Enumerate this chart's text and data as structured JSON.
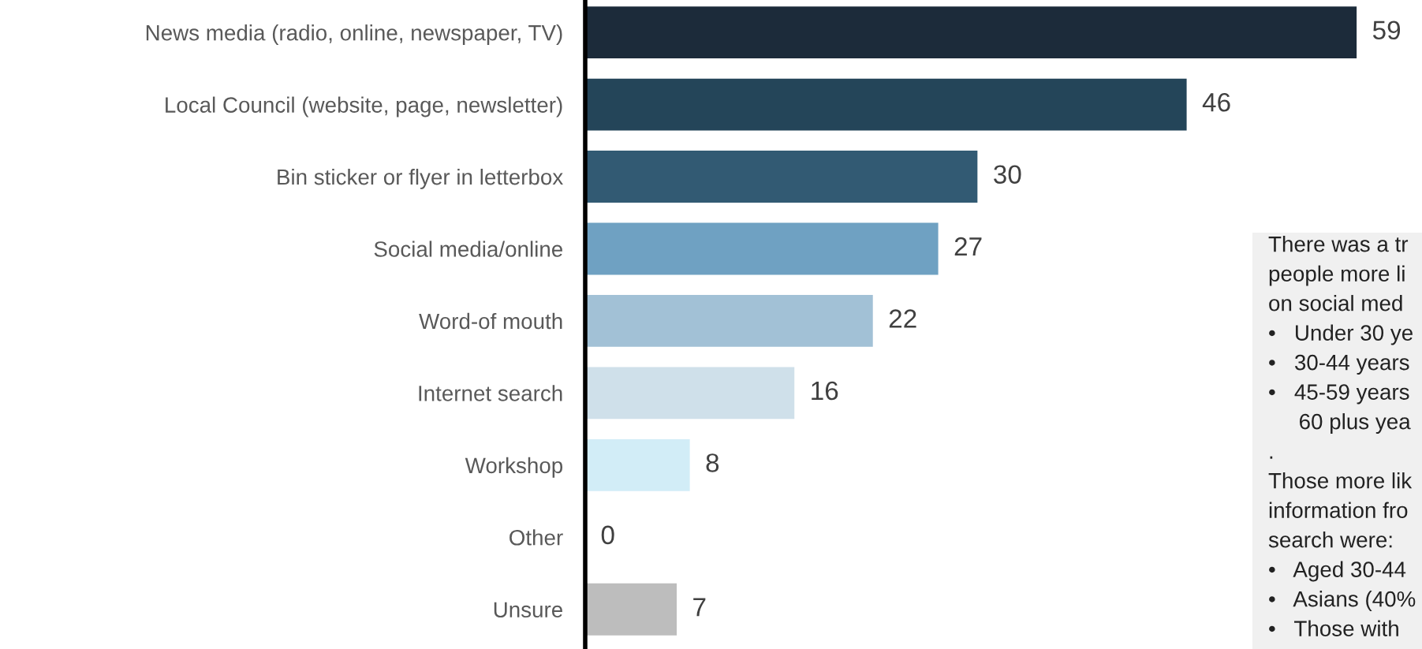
{
  "chart_data": {
    "type": "bar",
    "orientation": "horizontal",
    "data_labels": true,
    "categories": [
      "News media (radio, online, newspaper, TV)",
      "Local Council (website, page, newsletter)",
      "Bin sticker or flyer in letterbox",
      "Social media/online",
      "Word-of mouth",
      "Internet search",
      "Workshop",
      "Other",
      "Unsure"
    ],
    "values": [
      59,
      46,
      30,
      27,
      22,
      16,
      8,
      0,
      7
    ],
    "colors": [
      "#1c2b3a",
      "#244559",
      "#325a73",
      "#6fa1c2",
      "#a2c1d6",
      "#cfe0ea",
      "#d2edf7",
      "#2e5a78",
      "#bdbdbd"
    ],
    "xlim": [
      0,
      64
    ],
    "grid": false,
    "legend": false,
    "tick_labels": "y",
    "annotations": [
      "There was a tr",
      "people more li",
      "on social med",
      "•   Under 30 ye",
      "•   30-44 years",
      "•   45-59 years",
      "     60 plus yea",
      ".",
      "Those more lik",
      "information fro",
      "search were:",
      "•   Aged 30-44",
      "•   Asians (40%",
      "•   Those with"
    ]
  }
}
